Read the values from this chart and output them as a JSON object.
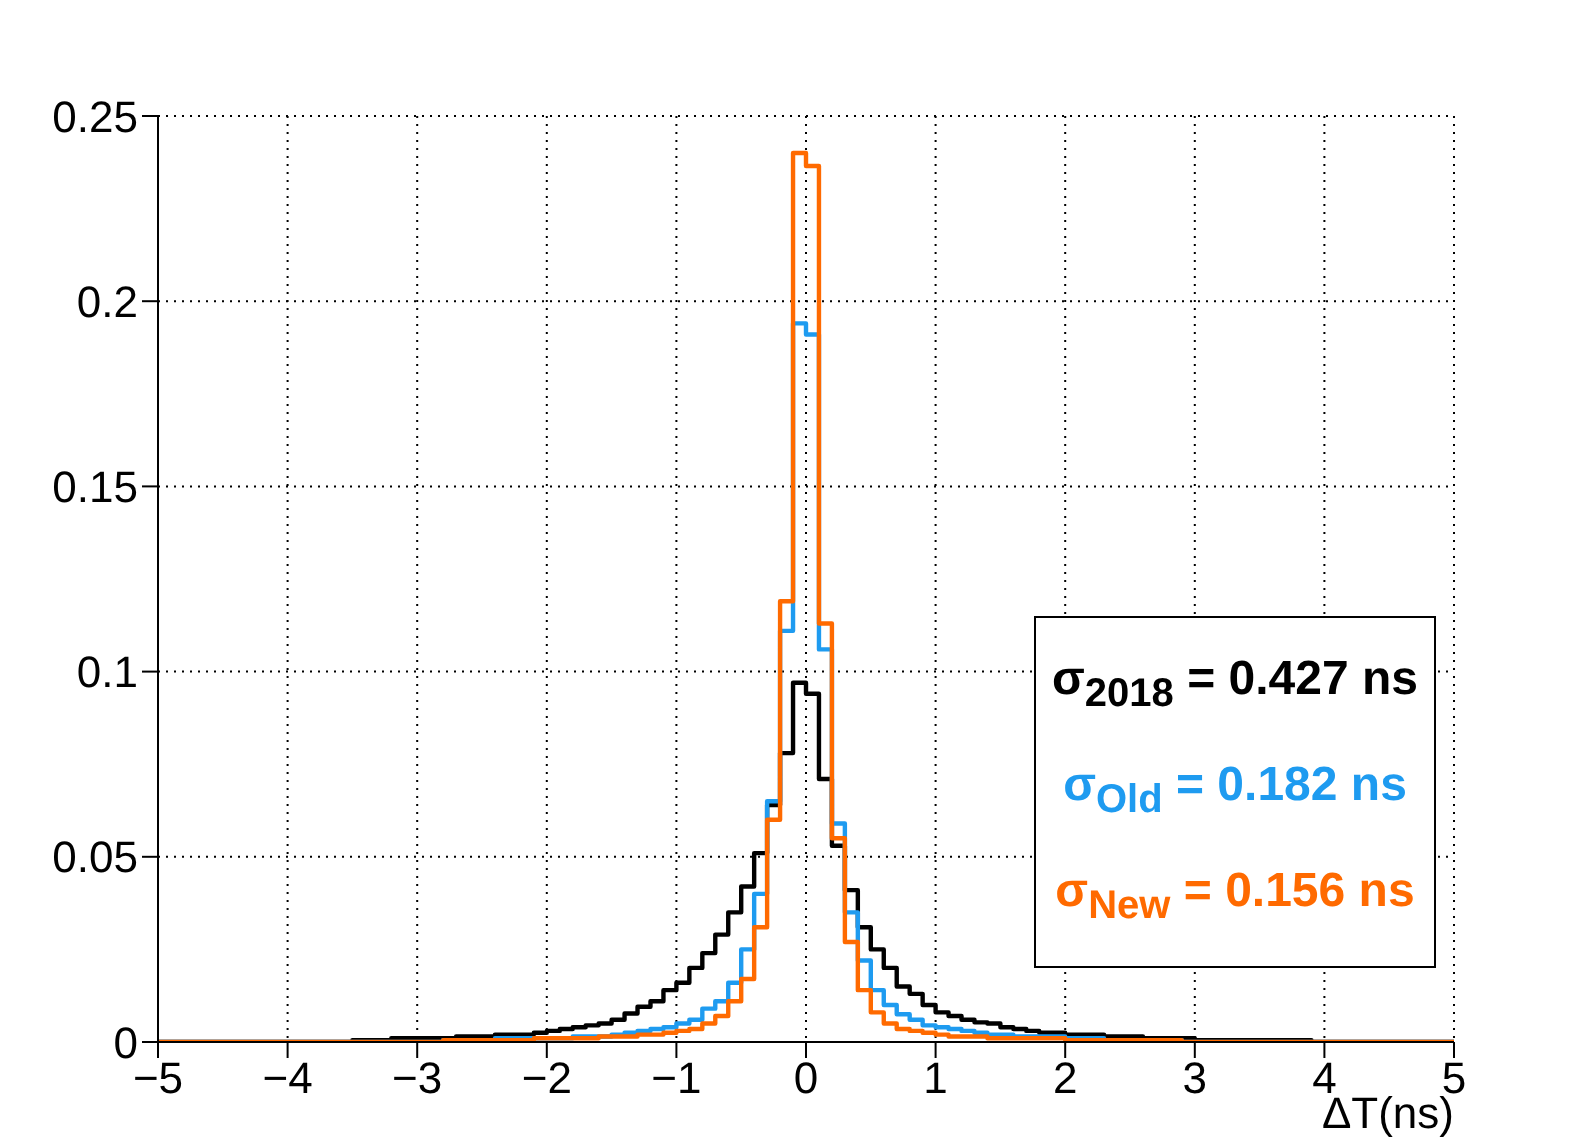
{
  "chart_data": {
    "type": "histogram",
    "xlabel": "ΔT(ns)",
    "bins": [
      -5,
      -4.9,
      -4.8,
      -4.7,
      -4.6,
      -4.5,
      -4.4,
      -4.3,
      -4.2,
      -4.1,
      -4,
      -3.9,
      -3.8,
      -3.7,
      -3.6,
      -3.5,
      -3.4,
      -3.3,
      -3.2,
      -3.1,
      -3,
      -2.9,
      -2.8,
      -2.7,
      -2.6,
      -2.5,
      -2.4,
      -2.3,
      -2.2,
      -2.1,
      -2,
      -1.9,
      -1.8,
      -1.7,
      -1.6,
      -1.5,
      -1.4,
      -1.3,
      -1.2,
      -1.1,
      -1,
      -0.9,
      -0.8,
      -0.7,
      -0.6,
      -0.5,
      -0.4,
      -0.3,
      -0.2,
      -0.1,
      0,
      0.1,
      0.2,
      0.3,
      0.4,
      0.5,
      0.6,
      0.7,
      0.8,
      0.9,
      1,
      1.1,
      1.2,
      1.3,
      1.4,
      1.5,
      1.6,
      1.7,
      1.8,
      1.9,
      2,
      2.1,
      2.2,
      2.3,
      2.4,
      2.5,
      2.6,
      2.7,
      2.8,
      2.9,
      3,
      3.1,
      3.2,
      3.3,
      3.4,
      3.5,
      3.6,
      3.7,
      3.8,
      3.9,
      4,
      4.1,
      4.2,
      4.3,
      4.4,
      4.5,
      4.6,
      4.7,
      4.8,
      4.9,
      5
    ],
    "series": [
      {
        "name": "σ$_{2018}$ = 0.427 ns",
        "color": "#000000",
        "values": [
          0,
          0,
          0,
          0,
          0,
          0,
          0,
          0,
          0,
          0,
          0,
          0,
          0,
          0,
          0,
          0.0005,
          0.0005,
          0.0005,
          0.001,
          0.001,
          0.001,
          0.001,
          0.001,
          0.0015,
          0.0015,
          0.0015,
          0.002,
          0.002,
          0.002,
          0.0025,
          0.003,
          0.0035,
          0.004,
          0.0045,
          0.005,
          0.006,
          0.0077,
          0.0095,
          0.011,
          0.014,
          0.016,
          0.02,
          0.024,
          0.029,
          0.035,
          0.042,
          0.051,
          0.064,
          0.078,
          0.097,
          0.094,
          0.071,
          0.053,
          0.041,
          0.031,
          0.025,
          0.02,
          0.015,
          0.013,
          0.01,
          0.008,
          0.007,
          0.006,
          0.0053,
          0.005,
          0.004,
          0.0035,
          0.003,
          0.0025,
          0.0025,
          0.002,
          0.002,
          0.002,
          0.0015,
          0.0015,
          0.0015,
          0.001,
          0.001,
          0.001,
          0.001,
          0.0005,
          0.0005,
          0.0005,
          0.0005,
          0.0005,
          0.0005,
          0.0005,
          0.0005,
          0.0005,
          0,
          0,
          0,
          0,
          0,
          0,
          0,
          0,
          0,
          0,
          0
        ]
      },
      {
        "name": "σ$_{Old}$ = 0.182 ns",
        "color": "#1e9bf0",
        "values": [
          0,
          0,
          0,
          0,
          0,
          0,
          0,
          0,
          0,
          0,
          0,
          0,
          0,
          0,
          0,
          0,
          0,
          0,
          0,
          0,
          0,
          0,
          0.0005,
          0.0005,
          0.0005,
          0.0005,
          0.001,
          0.001,
          0.001,
          0.001,
          0.001,
          0.001,
          0.0015,
          0.0015,
          0.0015,
          0.002,
          0.0025,
          0.003,
          0.0035,
          0.004,
          0.005,
          0.006,
          0.009,
          0.011,
          0.016,
          0.025,
          0.04,
          0.065,
          0.111,
          0.194,
          0.191,
          0.106,
          0.059,
          0.035,
          0.022,
          0.014,
          0.01,
          0.0075,
          0.006,
          0.0045,
          0.004,
          0.0035,
          0.003,
          0.0025,
          0.002,
          0.002,
          0.0015,
          0.0015,
          0.0015,
          0.0015,
          0.001,
          0.001,
          0.001,
          0.0005,
          0.0005,
          0.0005,
          0.0005,
          0.0005,
          0.0005,
          0,
          0,
          0,
          0,
          0,
          0,
          0,
          0,
          0,
          0,
          0,
          0,
          0,
          0,
          0,
          0,
          0,
          0,
          0,
          0,
          0
        ]
      },
      {
        "name": "σ$_{New}$ = 0.156 ns",
        "color": "#ff6a00",
        "values": [
          0,
          0,
          0,
          0,
          0,
          0,
          0,
          0,
          0,
          0,
          0,
          0,
          0,
          0,
          0,
          0,
          0,
          0,
          0,
          0,
          0,
          0,
          0.0005,
          0.0005,
          0.0005,
          0.0005,
          0.0005,
          0.0005,
          0.0005,
          0.001,
          0.001,
          0.001,
          0.001,
          0.001,
          0.0015,
          0.0015,
          0.0015,
          0.002,
          0.002,
          0.0025,
          0.003,
          0.0035,
          0.005,
          0.007,
          0.011,
          0.017,
          0.031,
          0.06,
          0.119,
          0.24,
          0.2365,
          0.113,
          0.055,
          0.027,
          0.014,
          0.008,
          0.005,
          0.0035,
          0.003,
          0.0025,
          0.002,
          0.0015,
          0.0015,
          0.0015,
          0.001,
          0.001,
          0.001,
          0.001,
          0.001,
          0.001,
          0.0005,
          0.0005,
          0.0005,
          0.0005,
          0.0005,
          0.0005,
          0.0005,
          0.0005,
          0.0005,
          0,
          0,
          0,
          0,
          0,
          0,
          0,
          0,
          0,
          0,
          0,
          0,
          0,
          0,
          0,
          0,
          0,
          0,
          0,
          0,
          0
        ]
      }
    ],
    "xlim": [
      -5,
      5
    ],
    "xticks": [
      {
        "value": -5,
        "label": "−5"
      },
      {
        "value": -4,
        "label": "−4"
      },
      {
        "value": -3,
        "label": "−3"
      },
      {
        "value": -2,
        "label": "−2"
      },
      {
        "value": -1,
        "label": "−1"
      },
      0,
      1,
      2,
      3,
      4,
      5
    ],
    "ylim": [
      0,
      0.25
    ],
    "yticks": [
      0,
      0.05,
      0.1,
      0.15,
      0.2,
      0.25
    ],
    "grid": true,
    "legend": "right",
    "line_style": "solid"
  }
}
